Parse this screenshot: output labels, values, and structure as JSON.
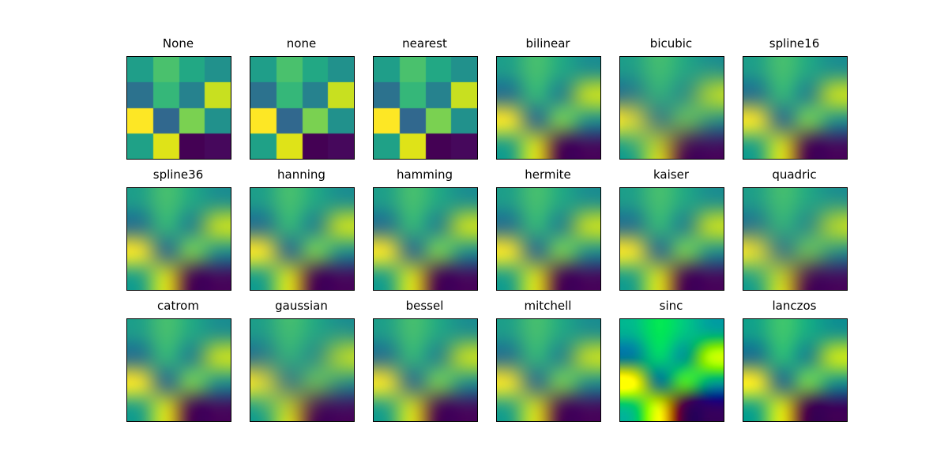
{
  "figure": {
    "background_color": "#ffffff",
    "border_color": "#000000",
    "title_color": "#000000"
  },
  "chart_data": {
    "type": "heatmap",
    "description": "Same 4x4 image rendered with 18 different imshow interpolation methods, arranged 3 rows x 6 columns",
    "colormap": "viridis",
    "rows": 4,
    "cols": 4,
    "grid_values": [
      [
        0.5,
        0.65,
        0.55,
        0.48
      ],
      [
        0.36,
        0.6,
        0.4,
        0.93
      ],
      [
        1.0,
        0.34,
        0.75,
        0.48
      ],
      [
        0.53,
        0.94,
        0.0,
        0.04
      ]
    ],
    "grid_colors": [
      [
        "#1f9e89",
        "#4ac16d",
        "#22a884",
        "#21918c"
      ],
      [
        "#2c728e",
        "#35b779",
        "#26828e",
        "#c8e020"
      ],
      [
        "#fde725",
        "#31688e",
        "#7ad151",
        "#21918c"
      ],
      [
        "#1fa187",
        "#dfe318",
        "#440154",
        "#46085c"
      ]
    ],
    "methods": [
      {
        "label": "None"
      },
      {
        "label": "none"
      },
      {
        "label": "nearest"
      },
      {
        "label": "bilinear"
      },
      {
        "label": "bicubic"
      },
      {
        "label": "spline16"
      },
      {
        "label": "spline36"
      },
      {
        "label": "hanning"
      },
      {
        "label": "hamming"
      },
      {
        "label": "hermite"
      },
      {
        "label": "kaiser"
      },
      {
        "label": "quadric"
      },
      {
        "label": "catrom"
      },
      {
        "label": "gaussian"
      },
      {
        "label": "bessel"
      },
      {
        "label": "mitchell"
      },
      {
        "label": "sinc"
      },
      {
        "label": "lanczos"
      }
    ]
  }
}
